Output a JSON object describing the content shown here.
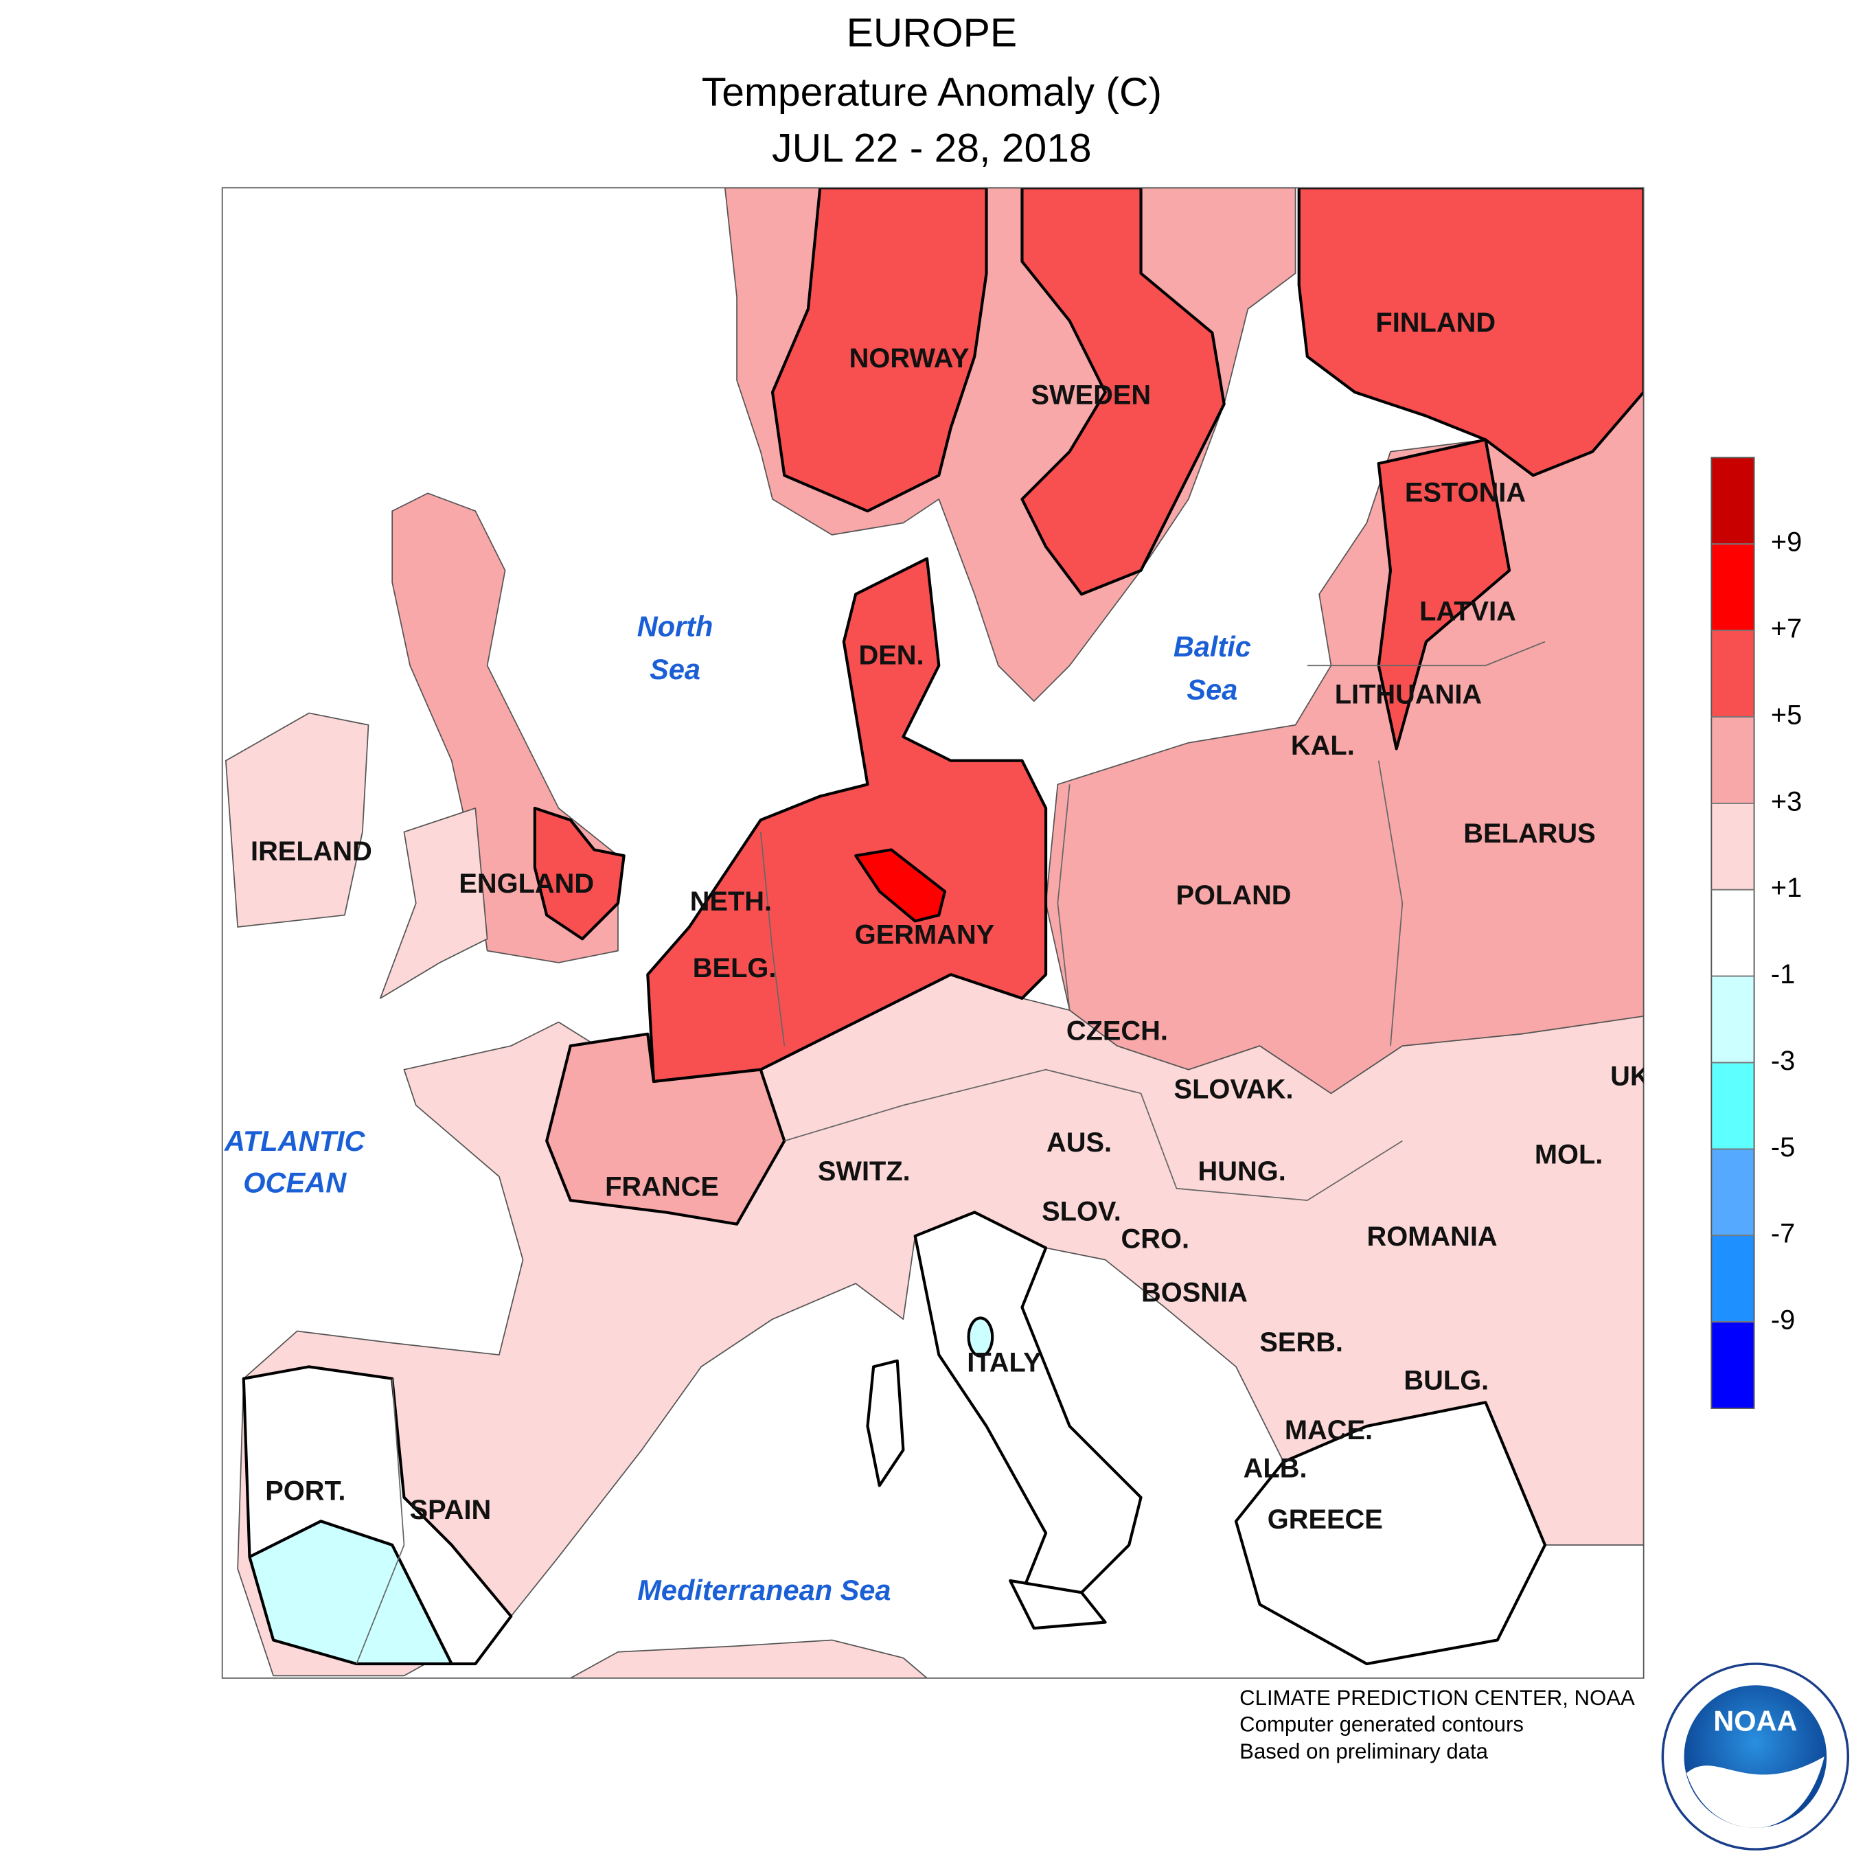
{
  "header": {
    "lines": [
      "EUROPE",
      "Temperature Anomaly (C)",
      "JUL 22 - 28, 2018"
    ]
  },
  "map": {
    "countries": [
      "FINLAND",
      "NORWAY",
      "SWEDEN",
      "ESTONIA",
      "LATVIA",
      "DEN.",
      "LITHUANIA",
      "KAL.",
      "BELARUS",
      "IRELAND",
      "ENGLAND",
      "POLAND",
      "NETH.",
      "GERMANY",
      "BELG.",
      "CZECH.",
      "UK",
      "SLOVAK.",
      "AUS.",
      "MOL.",
      "HUNG.",
      "SWITZ.",
      "FRANCE",
      "SLOV.",
      "CRO.",
      "ROMANIA",
      "BOSNIA",
      "SERB.",
      "ITALY",
      "BULG.",
      "MACE.",
      "ALB.",
      "PORT.",
      "SPAIN",
      "GREECE"
    ],
    "seas": [
      [
        "North",
        "Sea"
      ],
      [
        "Baltic",
        "Sea"
      ],
      [
        "ATLANTIC",
        "OCEAN"
      ],
      [
        "Mediterranean Sea"
      ]
    ]
  },
  "legend": {
    "colors": [
      "#c80000",
      "#ff0000",
      "#f85050",
      "#f8a8a8",
      "#fcd8d8",
      "#ffffff",
      "#ccffff",
      "#5effff",
      "#55aaff",
      "#1e90ff",
      "#0000ff"
    ],
    "ticks": [
      {
        "value": 9,
        "label": "+9"
      },
      {
        "value": 7,
        "label": "+7"
      },
      {
        "value": 5,
        "label": "+5"
      },
      {
        "value": 3,
        "label": "+3"
      },
      {
        "value": 1,
        "label": "+1"
      },
      -1,
      -3,
      -5,
      -7,
      -9
    ]
  },
  "credits": [
    "CLIMATE PREDICTION CENTER, NOAA",
    "Computer generated contours",
    "Based on preliminary data"
  ],
  "logo": {
    "text": "NOAA"
  }
}
